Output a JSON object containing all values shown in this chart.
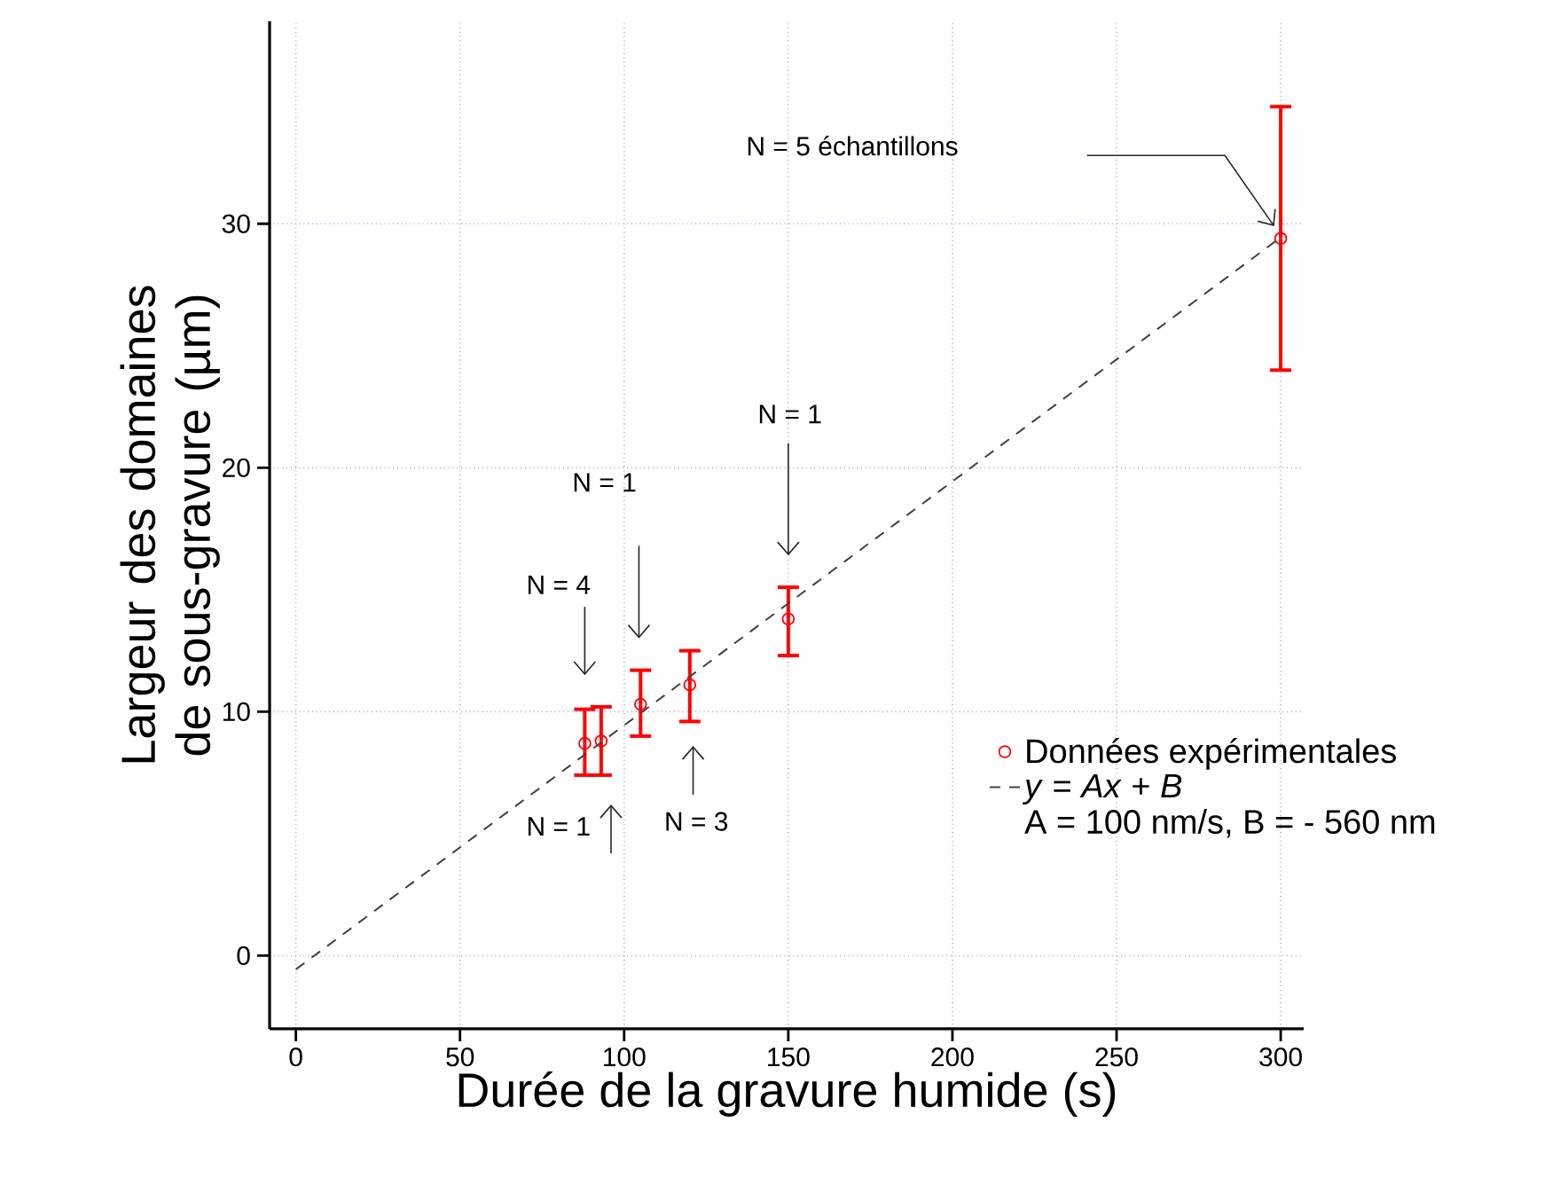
{
  "chart_data": {
    "type": "scatter",
    "xlabel": "Durée de la gravure humide (s)",
    "ylabel": "Largeur des domaines de sous-gravure (µm)",
    "xlim": [
      -8,
      307
    ],
    "ylim": [
      -3,
      38.3
    ],
    "xticks": [
      0,
      50,
      100,
      150,
      200,
      250,
      300
    ],
    "yticks": [
      0,
      10,
      20,
      30
    ],
    "grid": true,
    "legend": "right",
    "marker": "circle",
    "series": [
      {
        "name": "Données expérimentales",
        "color": "#ff0000",
        "x": [
          88,
          93,
          105,
          120,
          150,
          300
        ],
        "values": [
          8.7,
          8.8,
          10.3,
          11.1,
          13.8,
          29.4
        ],
        "errors": [
          [
            7.4,
            10.1
          ],
          [
            7.4,
            10.2
          ],
          [
            9.0,
            11.7
          ],
          [
            9.6,
            12.5
          ],
          [
            12.3,
            15.1
          ],
          [
            24.0,
            34.8
          ]
        ]
      },
      {
        "name": "*y* = *Ax* + *B*",
        "type": "line",
        "color": "#404040",
        "line_style": "dashed",
        "marker": "none",
        "x": [
          0,
          300
        ],
        "values": [
          -0.56,
          29.44
        ]
      }
    ],
    "annotations": [
      "N = 4",
      "N = 1",
      "N = 1",
      "N = 3",
      "N = 1",
      "N = 5 échantillons",
      "A = 100 nm/s, B = - 560 nm"
    ]
  }
}
